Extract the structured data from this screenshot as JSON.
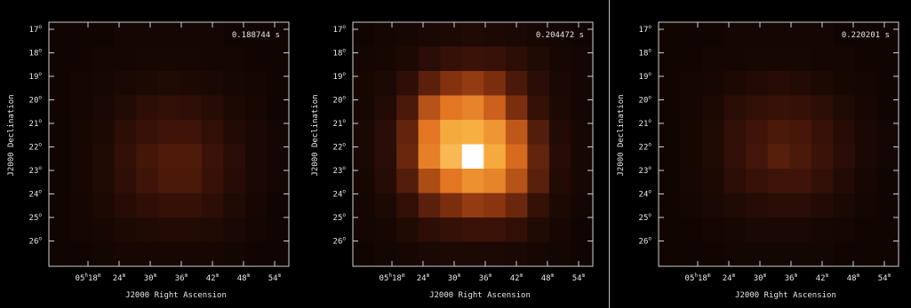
{
  "chart_data": [
    {
      "type": "heatmap",
      "title": "0.188744 s",
      "xlabel": "J2000 Right Ascension",
      "ylabel": "J2000 Declination",
      "x_ticks": [
        {
          "unit": "h",
          "label": "05",
          "min": "18"
        },
        {
          "label": "24"
        },
        {
          "label": "30"
        },
        {
          "label": "36"
        },
        {
          "label": "42"
        },
        {
          "label": "48"
        },
        {
          "label": "54"
        }
      ],
      "y_ticks": [
        "17",
        "18",
        "19",
        "20",
        "21",
        "22",
        "23",
        "24",
        "25",
        "26"
      ],
      "tick_suffix_deg": "o",
      "tick_suffix_min": "m",
      "grid": false,
      "colormap": [
        "#000000",
        "#3a1208",
        "#8a3510",
        "#e07020",
        "#f7b040",
        "#ffffff"
      ],
      "values": [
        [
          0.06,
          0.06,
          0.06,
          0.07,
          0.07,
          0.07,
          0.07,
          0.07,
          0.06,
          0.06,
          0.06
        ],
        [
          0.06,
          0.06,
          0.07,
          0.07,
          0.08,
          0.08,
          0.08,
          0.07,
          0.07,
          0.06,
          0.06
        ],
        [
          0.06,
          0.07,
          0.08,
          0.09,
          0.1,
          0.11,
          0.1,
          0.09,
          0.08,
          0.07,
          0.06
        ],
        [
          0.06,
          0.07,
          0.09,
          0.12,
          0.15,
          0.17,
          0.16,
          0.13,
          0.1,
          0.08,
          0.06
        ],
        [
          0.06,
          0.08,
          0.1,
          0.15,
          0.19,
          0.21,
          0.21,
          0.17,
          0.12,
          0.09,
          0.07
        ],
        [
          0.06,
          0.08,
          0.11,
          0.17,
          0.22,
          0.25,
          0.25,
          0.2,
          0.14,
          0.09,
          0.07
        ],
        [
          0.06,
          0.08,
          0.11,
          0.16,
          0.21,
          0.24,
          0.24,
          0.19,
          0.13,
          0.09,
          0.07
        ],
        [
          0.06,
          0.07,
          0.1,
          0.13,
          0.16,
          0.18,
          0.18,
          0.15,
          0.11,
          0.08,
          0.06
        ],
        [
          0.06,
          0.07,
          0.08,
          0.1,
          0.11,
          0.12,
          0.12,
          0.11,
          0.09,
          0.07,
          0.06
        ],
        [
          0.06,
          0.06,
          0.07,
          0.08,
          0.08,
          0.08,
          0.08,
          0.08,
          0.07,
          0.06,
          0.06
        ]
      ]
    },
    {
      "type": "heatmap",
      "title": "0.204472 s",
      "xlabel": "J2000 Right Ascension",
      "ylabel": "J2000 Declination",
      "x_ticks": [
        {
          "unit": "h",
          "label": "05",
          "min": "18"
        },
        {
          "label": "24"
        },
        {
          "label": "30"
        },
        {
          "label": "36"
        },
        {
          "label": "42"
        },
        {
          "label": "48"
        },
        {
          "label": "54"
        }
      ],
      "y_ticks": [
        "17",
        "18",
        "19",
        "20",
        "21",
        "22",
        "23",
        "24",
        "25",
        "26"
      ],
      "tick_suffix_deg": "o",
      "tick_suffix_min": "m",
      "grid": false,
      "colormap": [
        "#000000",
        "#3a1208",
        "#8a3510",
        "#e07020",
        "#f7b040",
        "#ffffff"
      ],
      "values": [
        [
          0.06,
          0.07,
          0.08,
          0.09,
          0.1,
          0.11,
          0.1,
          0.09,
          0.08,
          0.07,
          0.06
        ],
        [
          0.07,
          0.08,
          0.1,
          0.14,
          0.18,
          0.2,
          0.19,
          0.15,
          0.11,
          0.08,
          0.07
        ],
        [
          0.08,
          0.1,
          0.16,
          0.28,
          0.38,
          0.42,
          0.36,
          0.24,
          0.14,
          0.09,
          0.07
        ],
        [
          0.08,
          0.12,
          0.24,
          0.5,
          0.62,
          0.66,
          0.55,
          0.36,
          0.18,
          0.1,
          0.07
        ],
        [
          0.09,
          0.14,
          0.3,
          0.62,
          0.78,
          0.8,
          0.72,
          0.52,
          0.26,
          0.12,
          0.08
        ],
        [
          0.09,
          0.14,
          0.32,
          0.65,
          0.82,
          1.0,
          0.78,
          0.58,
          0.3,
          0.13,
          0.08
        ],
        [
          0.08,
          0.13,
          0.26,
          0.48,
          0.62,
          0.7,
          0.66,
          0.5,
          0.28,
          0.12,
          0.08
        ],
        [
          0.07,
          0.1,
          0.17,
          0.28,
          0.36,
          0.42,
          0.4,
          0.32,
          0.18,
          0.1,
          0.07
        ],
        [
          0.07,
          0.08,
          0.11,
          0.15,
          0.18,
          0.2,
          0.2,
          0.17,
          0.11,
          0.08,
          0.06
        ],
        [
          0.06,
          0.07,
          0.08,
          0.09,
          0.1,
          0.1,
          0.1,
          0.09,
          0.08,
          0.07,
          0.06
        ]
      ]
    },
    {
      "type": "heatmap",
      "title": "0.220201 s",
      "xlabel": "J2000 Right Ascension",
      "ylabel": "J2000 Declination",
      "x_ticks": [
        {
          "unit": "h",
          "label": "05",
          "min": "18"
        },
        {
          "label": "24"
        },
        {
          "label": "30"
        },
        {
          "label": "36"
        },
        {
          "label": "42"
        },
        {
          "label": "48"
        },
        {
          "label": "54"
        }
      ],
      "y_ticks": [
        "17",
        "18",
        "19",
        "20",
        "21",
        "22",
        "23",
        "24",
        "25",
        "26"
      ],
      "tick_suffix_deg": "o",
      "tick_suffix_min": "m",
      "grid": false,
      "colormap": [
        "#000000",
        "#3a1208",
        "#8a3510",
        "#e07020",
        "#f7b040",
        "#ffffff"
      ],
      "values": [
        [
          0.06,
          0.06,
          0.06,
          0.07,
          0.07,
          0.07,
          0.07,
          0.07,
          0.06,
          0.06,
          0.06
        ],
        [
          0.06,
          0.06,
          0.07,
          0.07,
          0.08,
          0.08,
          0.08,
          0.07,
          0.07,
          0.06,
          0.06
        ],
        [
          0.06,
          0.07,
          0.08,
          0.1,
          0.12,
          0.13,
          0.12,
          0.1,
          0.08,
          0.07,
          0.06
        ],
        [
          0.06,
          0.07,
          0.1,
          0.14,
          0.17,
          0.19,
          0.18,
          0.15,
          0.11,
          0.08,
          0.06
        ],
        [
          0.06,
          0.08,
          0.11,
          0.17,
          0.21,
          0.24,
          0.23,
          0.19,
          0.13,
          0.09,
          0.07
        ],
        [
          0.06,
          0.08,
          0.11,
          0.17,
          0.22,
          0.27,
          0.24,
          0.2,
          0.14,
          0.09,
          0.07
        ],
        [
          0.06,
          0.08,
          0.1,
          0.15,
          0.19,
          0.21,
          0.21,
          0.17,
          0.12,
          0.08,
          0.06
        ],
        [
          0.06,
          0.07,
          0.09,
          0.11,
          0.13,
          0.14,
          0.14,
          0.12,
          0.09,
          0.07,
          0.06
        ],
        [
          0.06,
          0.06,
          0.07,
          0.08,
          0.09,
          0.09,
          0.09,
          0.08,
          0.07,
          0.06,
          0.06
        ],
        [
          0.06,
          0.06,
          0.06,
          0.07,
          0.07,
          0.07,
          0.07,
          0.07,
          0.06,
          0.06,
          0.06
        ]
      ]
    }
  ]
}
